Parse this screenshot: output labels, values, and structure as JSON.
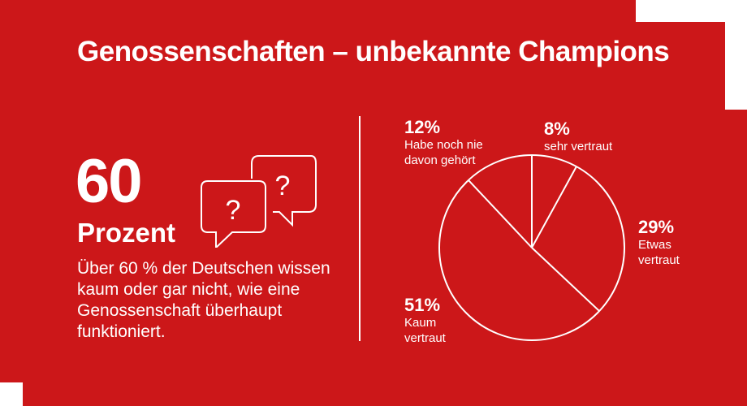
{
  "title": "Genossenschaften – unbekannte Champions",
  "stat": {
    "value": "60",
    "unit": "Prozent",
    "description": "Über 60 % der Deutschen wissen kaum oder gar nicht, wie eine Genossenschaft überhaupt funktioniert."
  },
  "colors": {
    "background": "#cc1719",
    "foreground": "#ffffff"
  },
  "chart_data": {
    "type": "pie",
    "title": "",
    "slices": [
      {
        "label": "sehr vertraut",
        "value": 8,
        "pct_label": "8%"
      },
      {
        "label": "Etwas vertraut",
        "value": 29,
        "pct_label": "29%"
      },
      {
        "label": "Kaum vertraut",
        "value": 51,
        "pct_label": "51%"
      },
      {
        "label": "Habe noch nie davon gehört",
        "value": 12,
        "pct_label": "12%"
      }
    ],
    "start_angle": "top",
    "direction": "clockwise"
  }
}
